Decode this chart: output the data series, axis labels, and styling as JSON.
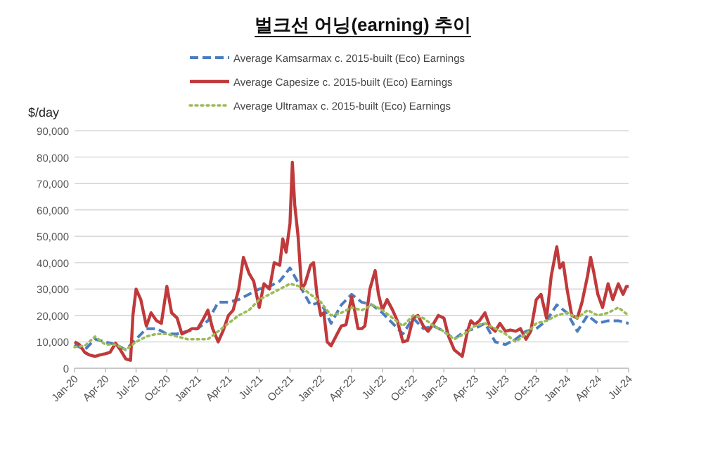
{
  "chart_data": {
    "type": "line",
    "title": "벌크선 어닝(earning) 추이",
    "ylabel": "$/day",
    "legend": "top",
    "grid": "y",
    "marker": "none",
    "xlim": [
      "2020-01",
      "2024-07"
    ],
    "xticks": [
      {
        "value": "2020-01",
        "label": "Jan-20"
      },
      {
        "value": "2020-04",
        "label": "Apr-20"
      },
      {
        "value": "2020-07",
        "label": "Jul-20"
      },
      {
        "value": "2020-10",
        "label": "Oct-20"
      },
      {
        "value": "2021-01",
        "label": "Jan-21"
      },
      {
        "value": "2021-04",
        "label": "Apr-21"
      },
      {
        "value": "2021-07",
        "label": "Jul-21"
      },
      {
        "value": "2021-10",
        "label": "Oct-21"
      },
      {
        "value": "2022-01",
        "label": "Jan-22"
      },
      {
        "value": "2022-04",
        "label": "Apr-22"
      },
      {
        "value": "2022-07",
        "label": "Jul-22"
      },
      {
        "value": "2022-10",
        "label": "Oct-22"
      },
      {
        "value": "2023-01",
        "label": "Jan-23"
      },
      {
        "value": "2023-04",
        "label": "Apr-23"
      },
      {
        "value": "2023-07",
        "label": "Jul-23"
      },
      {
        "value": "2023-10",
        "label": "Oct-23"
      },
      {
        "value": "2024-01",
        "label": "Jan-24"
      },
      {
        "value": "2024-04",
        "label": "Apr-24"
      },
      {
        "value": "2024-07",
        "label": "Jul-24"
      }
    ],
    "ylim": [
      0,
      90000
    ],
    "yticks": [
      {
        "value": 0,
        "label": "0"
      },
      {
        "value": 10000,
        "label": "10,000"
      },
      {
        "value": 20000,
        "label": "20,000"
      },
      {
        "value": 30000,
        "label": "30,000"
      },
      {
        "value": 40000,
        "label": "40,000"
      },
      {
        "value": 50000,
        "label": "50,000"
      },
      {
        "value": 60000,
        "label": "60,000"
      },
      {
        "value": 70000,
        "label": "70,000"
      },
      {
        "value": 80000,
        "label": "80,000"
      },
      {
        "value": 90000,
        "label": "90,000"
      }
    ],
    "series": [
      {
        "name": "Average Kamsarmax c. 2015-built (Eco) Earnings",
        "color": "#4a7ebf",
        "line_style": "dashed",
        "x": [
          "2020-01",
          "2020-02",
          "2020-03",
          "2020-04",
          "2020-05",
          "2020-06",
          "2020-07",
          "2020-08",
          "2020-09",
          "2020-10",
          "2020-11",
          "2020-12",
          "2021-01",
          "2021-02",
          "2021-03",
          "2021-04",
          "2021-05",
          "2021-06",
          "2021-07",
          "2021-08",
          "2021-09",
          "2021-10",
          "2021-11",
          "2021-12",
          "2022-01",
          "2022-02",
          "2022-03",
          "2022-04",
          "2022-05",
          "2022-06",
          "2022-07",
          "2022-08",
          "2022-09",
          "2022-10",
          "2022-11",
          "2022-12",
          "2023-01",
          "2023-02",
          "2023-03",
          "2023-04",
          "2023-05",
          "2023-06",
          "2023-07",
          "2023-08",
          "2023-09",
          "2023-10",
          "2023-11",
          "2023-12",
          "2024-01",
          "2024-02",
          "2024-03",
          "2024-04",
          "2024-05",
          "2024-06",
          "2024-07"
        ],
        "values": [
          9000,
          7000,
          11000,
          10000,
          9000,
          7000,
          11000,
          15000,
          15000,
          13000,
          13000,
          14000,
          15000,
          18000,
          25000,
          25000,
          26000,
          28000,
          30000,
          31000,
          33000,
          38000,
          31000,
          24000,
          25000,
          17000,
          24000,
          28000,
          25000,
          24000,
          21000,
          17000,
          13000,
          19000,
          15000,
          16000,
          14000,
          11000,
          14000,
          15000,
          17000,
          10000,
          9000,
          11000,
          14000,
          15000,
          18000,
          24000,
          21000,
          14000,
          20000,
          17000,
          18000,
          18000,
          17000
        ]
      },
      {
        "name": "Average Capesize c. 2015-built (Eco) Earnings",
        "color": "#c0393b",
        "line_style": "solid",
        "x": [
          "2020-01-01",
          "2020-01-15",
          "2020-02-01",
          "2020-02-15",
          "2020-03-01",
          "2020-03-15",
          "2020-04-01",
          "2020-04-15",
          "2020-05-01",
          "2020-05-15",
          "2020-06-01",
          "2020-06-15",
          "2020-06-22",
          "2020-07-01",
          "2020-07-15",
          "2020-08-01",
          "2020-08-15",
          "2020-09-01",
          "2020-09-15",
          "2020-10-01",
          "2020-10-15",
          "2020-11-01",
          "2020-11-15",
          "2020-12-01",
          "2020-12-15",
          "2021-01-01",
          "2021-01-15",
          "2021-02-01",
          "2021-02-15",
          "2021-03-01",
          "2021-03-15",
          "2021-04-01",
          "2021-04-15",
          "2021-05-01",
          "2021-05-15",
          "2021-06-01",
          "2021-06-15",
          "2021-07-01",
          "2021-07-15",
          "2021-08-01",
          "2021-08-15",
          "2021-09-01",
          "2021-09-10",
          "2021-09-20",
          "2021-10-01",
          "2021-10-08",
          "2021-10-15",
          "2021-10-25",
          "2021-11-05",
          "2021-11-15",
          "2021-12-01",
          "2021-12-10",
          "2021-12-20",
          "2022-01-01",
          "2022-01-10",
          "2022-01-20",
          "2022-02-01",
          "2022-02-15",
          "2022-03-01",
          "2022-03-15",
          "2022-04-01",
          "2022-04-10",
          "2022-04-20",
          "2022-05-01",
          "2022-05-10",
          "2022-05-25",
          "2022-06-10",
          "2022-06-20",
          "2022-07-01",
          "2022-07-15",
          "2022-08-01",
          "2022-08-15",
          "2022-09-01",
          "2022-09-15",
          "2022-10-01",
          "2022-10-15",
          "2022-11-01",
          "2022-11-15",
          "2022-12-01",
          "2022-12-15",
          "2023-01-01",
          "2023-01-15",
          "2023-02-01",
          "2023-02-25",
          "2023-03-10",
          "2023-03-20",
          "2023-04-01",
          "2023-04-15",
          "2023-05-01",
          "2023-05-15",
          "2023-06-01",
          "2023-06-15",
          "2023-07-01",
          "2023-07-15",
          "2023-08-01",
          "2023-08-15",
          "2023-09-01",
          "2023-09-15",
          "2023-10-01",
          "2023-10-15",
          "2023-11-01",
          "2023-11-15",
          "2023-12-01",
          "2023-12-10",
          "2023-12-20",
          "2024-01-01",
          "2024-01-15",
          "2024-02-01",
          "2024-02-15",
          "2024-03-01",
          "2024-03-10",
          "2024-03-20",
          "2024-04-01",
          "2024-04-15",
          "2024-05-01",
          "2024-05-15",
          "2024-06-01",
          "2024-06-15",
          "2024-06-25",
          "2024-07-01"
        ],
        "values": [
          10000,
          9000,
          6000,
          5000,
          4500,
          5000,
          5500,
          6000,
          9500,
          7000,
          3500,
          3000,
          20000,
          30000,
          26000,
          16000,
          21000,
          18000,
          17000,
          31000,
          21000,
          19000,
          13000,
          14000,
          15000,
          15000,
          18000,
          22000,
          15000,
          10000,
          14000,
          20000,
          22000,
          30000,
          42000,
          36000,
          33000,
          23000,
          32000,
          30000,
          40000,
          39000,
          49000,
          44000,
          55000,
          78000,
          62000,
          50000,
          30000,
          32000,
          39000,
          40000,
          28000,
          20000,
          21000,
          10000,
          8500,
          12000,
          16000,
          16500,
          27000,
          22000,
          15000,
          15000,
          16000,
          30000,
          37000,
          28000,
          22000,
          26000,
          22000,
          18000,
          10000,
          10500,
          19000,
          20000,
          16000,
          14000,
          17000,
          20000,
          19000,
          12000,
          7000,
          4500,
          14000,
          18000,
          16500,
          18000,
          21000,
          16000,
          14000,
          17000,
          14000,
          14500,
          14000,
          15000,
          11000,
          14000,
          26000,
          28000,
          19000,
          35000,
          46000,
          38000,
          40000,
          30000,
          20000,
          19000,
          25000,
          35000,
          42000,
          36000,
          28000,
          23000,
          32000,
          26000,
          32000,
          28000,
          31000,
          31000
        ]
      },
      {
        "name": "Average Ultramax c. 2015-built (Eco) Earnings",
        "color": "#9bbb59",
        "line_style": "dotted",
        "x": [
          "2020-01",
          "2020-02",
          "2020-03",
          "2020-04",
          "2020-05",
          "2020-06",
          "2020-07",
          "2020-08",
          "2020-09",
          "2020-10",
          "2020-11",
          "2020-12",
          "2021-01",
          "2021-02",
          "2021-03",
          "2021-04",
          "2021-05",
          "2021-06",
          "2021-07",
          "2021-08",
          "2021-09",
          "2021-10",
          "2021-11",
          "2021-12",
          "2022-01",
          "2022-02",
          "2022-03",
          "2022-04",
          "2022-05",
          "2022-06",
          "2022-07",
          "2022-08",
          "2022-09",
          "2022-10",
          "2022-11",
          "2022-12",
          "2023-01",
          "2023-02",
          "2023-03",
          "2023-04",
          "2023-05",
          "2023-06",
          "2023-07",
          "2023-08",
          "2023-09",
          "2023-10",
          "2023-11",
          "2023-12",
          "2024-01",
          "2024-02",
          "2024-03",
          "2024-04",
          "2024-05",
          "2024-06",
          "2024-07"
        ],
        "values": [
          8000,
          8500,
          12000,
          9000,
          9000,
          7000,
          10000,
          12000,
          13000,
          13000,
          12000,
          11000,
          11000,
          11000,
          14000,
          17000,
          20000,
          22000,
          26000,
          28000,
          30000,
          32000,
          31000,
          28000,
          25000,
          20000,
          21000,
          23000,
          22000,
          24000,
          22000,
          19000,
          16000,
          20000,
          19000,
          16000,
          14000,
          11000,
          13000,
          16000,
          17000,
          15000,
          13000,
          10000,
          13000,
          17000,
          18000,
          20000,
          21000,
          19000,
          22000,
          20000,
          21000,
          23000,
          20000
        ]
      }
    ]
  }
}
